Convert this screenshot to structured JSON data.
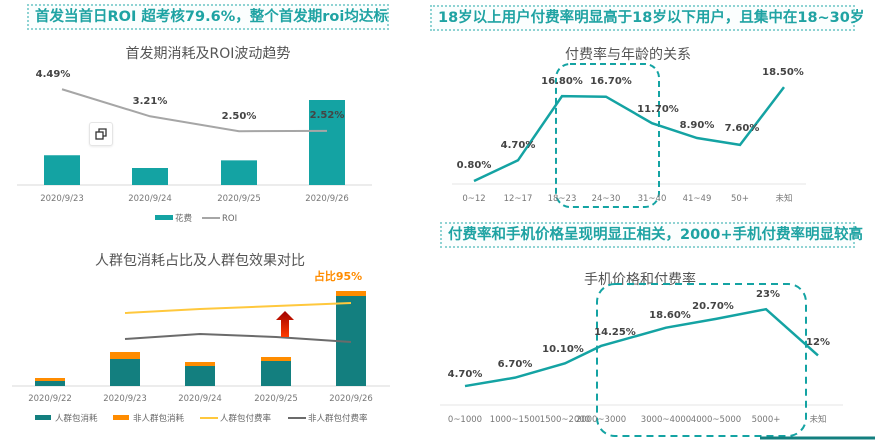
{
  "headlines": {
    "top_left": "首发当首日ROI 超考核79.6%，整个首发期roi均达标",
    "top_right": "18岁以上用户付费率明显高于18岁以下用户，且集中在18~30岁",
    "mid_right": "付费率和手机价格呈现明显正相关，2000+手机付费率明显较高"
  },
  "colors": {
    "teal": "#14a3a3",
    "dark_teal": "#137f7f",
    "orange": "#ff8c00",
    "yellow": "#ffc83d",
    "gray": "#a6a6a6",
    "dark_gray": "#6b6b6b",
    "arrow_red": "#d11a00",
    "headline_text": "#1fa3a3"
  },
  "icons": {
    "copy": "copy-icon",
    "arrow": "up-arrow-icon"
  },
  "chart_data": [
    {
      "type": "bar+line",
      "title": "首发期消耗及ROI波动趋势",
      "categories": [
        "2020/9/23",
        "2020/9/24",
        "2020/9/25",
        "2020/9/26"
      ],
      "series": [
        {
          "name": "花费",
          "kind": "bar",
          "values": [
            35,
            20,
            29,
            100
          ]
        },
        {
          "name": "ROI",
          "kind": "line",
          "values": [
            4.49,
            3.21,
            2.5,
            2.52
          ],
          "labels": [
            "4.49%",
            "3.21%",
            "2.50%",
            "2.52%"
          ]
        }
      ],
      "legend": "bottom",
      "grid": false
    },
    {
      "type": "stacked-bar+line",
      "title": "人群包消耗占比及人群包效果对比",
      "annotation": "占比95%",
      "categories": [
        "2020/9/22",
        "2020/9/23",
        "2020/9/24",
        "2020/9/25",
        "2020/9/26"
      ],
      "series": [
        {
          "name": "人群包消耗",
          "kind": "bar",
          "values": [
            5,
            27,
            20,
            25,
            90
          ]
        },
        {
          "name": "非人群包消耗",
          "kind": "bar",
          "values": [
            3,
            7,
            4,
            4,
            5
          ]
        },
        {
          "name": "人群包付费率",
          "kind": "line",
          "values": [
            null,
            73,
            77,
            80,
            83
          ]
        },
        {
          "name": "非人群包付费率",
          "kind": "line",
          "values": [
            null,
            47,
            52,
            49,
            44
          ]
        }
      ],
      "legend": "bottom",
      "grid": false
    },
    {
      "type": "line",
      "title": "付费率与年龄的关系",
      "categories": [
        "0~12",
        "12~17",
        "18~23",
        "24~30",
        "31~40",
        "41~49",
        "50+",
        "未知"
      ],
      "values": [
        0.8,
        4.7,
        16.8,
        16.7,
        11.7,
        8.9,
        7.6,
        18.5
      ],
      "labels": [
        "0.80%",
        "4.70%",
        "16.80%",
        "16.70%",
        "11.70%",
        "8.90%",
        "7.60%",
        "18.50%"
      ],
      "highlight": [
        "18~23",
        "31~40"
      ],
      "grid": false
    },
    {
      "type": "line",
      "title": "手机价格和付费率",
      "categories": [
        "0~1000",
        "1000~1500",
        "1500~2000",
        "2000~3000",
        "3000~4000",
        "4000~5000",
        "5000+",
        "未知"
      ],
      "values": [
        4.7,
        6.7,
        10.1,
        14.25,
        18.6,
        20.7,
        23,
        12
      ],
      "labels": [
        "4.70%",
        "6.70%",
        "10.10%",
        "14.25%",
        "18.60%",
        "20.70%",
        "23%",
        "12%"
      ],
      "highlight": [
        "2000~3000",
        "未知"
      ],
      "grid": false
    }
  ]
}
